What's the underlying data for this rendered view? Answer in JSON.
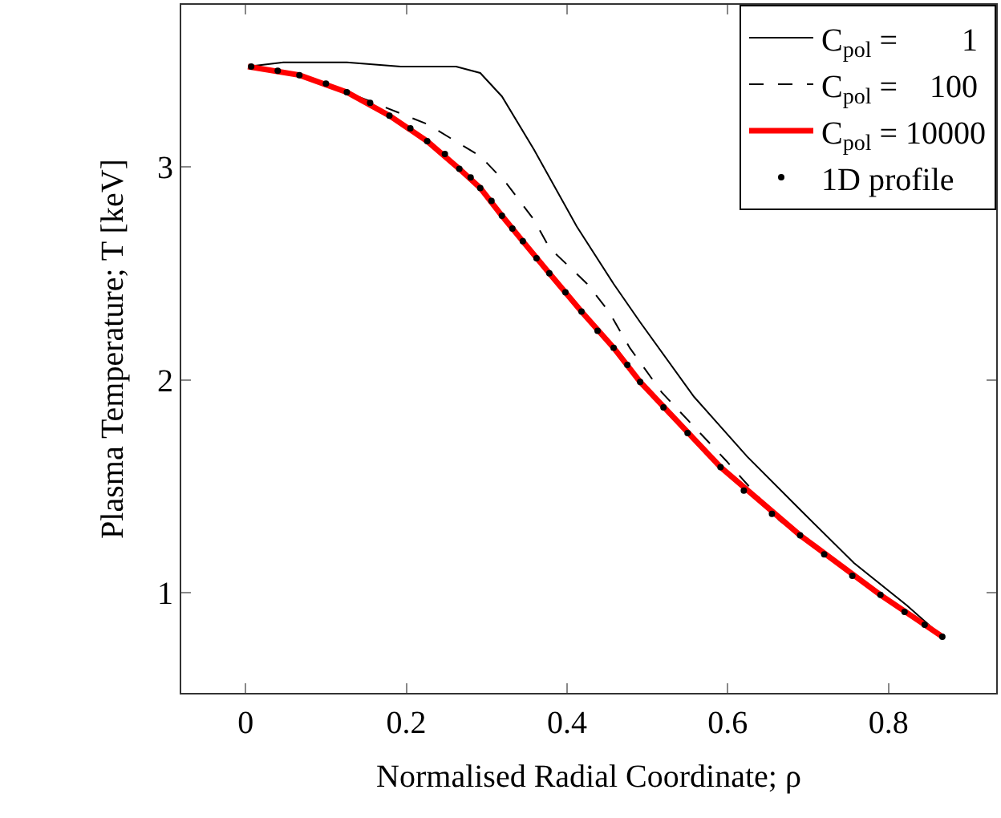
{
  "chart_data": {
    "type": "line",
    "xlabel": "Normalised Radial Coordinate; ρ",
    "ylabel": "Plasma Temperature; T [keV]",
    "xlim": [
      -0.08,
      0.934
    ],
    "ylim": [
      0.53,
      3.76
    ],
    "xticks": [
      0,
      0.2,
      0.4,
      0.6,
      0.8
    ],
    "yticks": [
      1,
      2,
      3
    ],
    "legend": "top right",
    "series": [
      {
        "name": "C$_{pol}$ =        1",
        "color": "#000000",
        "line_style": "solid",
        "x": [
          0.003,
          0.047,
          0.126,
          0.193,
          0.262,
          0.292,
          0.319,
          0.359,
          0.412,
          0.458,
          0.491,
          0.558,
          0.624,
          0.69,
          0.757,
          0.823,
          0.867
        ],
        "values": [
          3.47,
          3.49,
          3.49,
          3.47,
          3.47,
          3.44,
          3.33,
          3.08,
          2.72,
          2.45,
          2.27,
          1.92,
          1.64,
          1.39,
          1.14,
          0.94,
          0.794
        ]
      },
      {
        "name": "C$_{pol}$ =    100",
        "color": "#000000",
        "line_style": "dashed",
        "x": [
          0.003,
          0.067,
          0.126,
          0.153,
          0.226,
          0.292,
          0.325,
          0.359,
          0.378,
          0.425,
          0.452,
          0.478,
          0.518,
          0.598,
          0.664,
          0.744,
          0.823,
          0.867
        ],
        "values": [
          3.47,
          3.43,
          3.35,
          3.31,
          3.2,
          3.05,
          2.92,
          2.75,
          2.62,
          2.45,
          2.32,
          2.15,
          1.94,
          1.62,
          1.34,
          1.12,
          0.91,
          0.794
        ]
      },
      {
        "name": "C$_{pol}$ = 10000",
        "color": "#ff0000",
        "line_style": "solid",
        "x": [
          0.003,
          0.067,
          0.126,
          0.179,
          0.226,
          0.266,
          0.292,
          0.319,
          0.345,
          0.378,
          0.418,
          0.458,
          0.491,
          0.591,
          0.69,
          0.79,
          0.867
        ],
        "values": [
          3.47,
          3.43,
          3.35,
          3.24,
          3.12,
          2.99,
          2.9,
          2.77,
          2.65,
          2.5,
          2.32,
          2.15,
          1.99,
          1.59,
          1.27,
          0.99,
          0.794
        ]
      },
      {
        "name": "1D profile",
        "color": "#000000",
        "type": "scatter",
        "marker": "circle",
        "x": [
          0.007,
          0.04,
          0.067,
          0.1,
          0.126,
          0.155,
          0.179,
          0.205,
          0.226,
          0.248,
          0.266,
          0.28,
          0.292,
          0.306,
          0.319,
          0.332,
          0.345,
          0.362,
          0.378,
          0.398,
          0.418,
          0.438,
          0.458,
          0.475,
          0.491,
          0.52,
          0.55,
          0.591,
          0.62,
          0.655,
          0.69,
          0.72,
          0.755,
          0.79,
          0.82,
          0.845,
          0.867
        ],
        "values": [
          3.47,
          3.45,
          3.43,
          3.39,
          3.35,
          3.3,
          3.24,
          3.18,
          3.12,
          3.06,
          2.99,
          2.95,
          2.9,
          2.84,
          2.77,
          2.71,
          2.65,
          2.57,
          2.5,
          2.41,
          2.32,
          2.23,
          2.15,
          2.07,
          1.99,
          1.87,
          1.75,
          1.59,
          1.48,
          1.37,
          1.27,
          1.18,
          1.08,
          0.99,
          0.91,
          0.85,
          0.794
        ]
      }
    ]
  }
}
